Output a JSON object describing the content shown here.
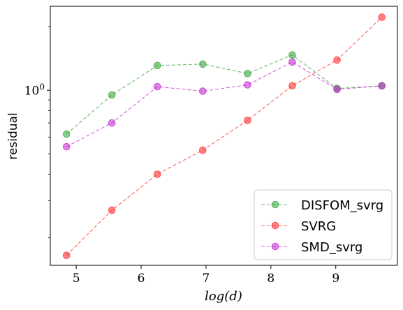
{
  "chart_data": {
    "type": "line",
    "title": "",
    "xlabel": "log(d)",
    "ylabel": "residual",
    "x": [
      4.85,
      5.55,
      6.25,
      6.95,
      7.64,
      8.33,
      9.02,
      9.71
    ],
    "xlim": [
      4.6,
      9.95
    ],
    "ylim": [
      0.148,
      2.5
    ],
    "yscale": "log",
    "xticks": [
      5,
      6,
      7,
      8,
      9
    ],
    "xtick_labels": [
      "5",
      "6",
      "7",
      "8",
      "9"
    ],
    "ytick_major": [
      1.0
    ],
    "ytick_major_labels": [
      "10^0"
    ],
    "ytick_minor": [
      0.2,
      0.3,
      0.4,
      0.5,
      0.6,
      0.7,
      0.8,
      0.9,
      2.0
    ],
    "grid": false,
    "legend_position": "bottom-right",
    "series": [
      {
        "name": "DISFOM_svrg",
        "color": "#2ca02c",
        "values": [
          0.62,
          0.95,
          1.31,
          1.33,
          1.2,
          1.47,
          1.02,
          1.05
        ]
      },
      {
        "name": "SVRG",
        "color": "#ff2020",
        "values": [
          0.165,
          0.27,
          0.4,
          0.52,
          0.72,
          1.05,
          1.39,
          2.22
        ]
      },
      {
        "name": "SMD_svrg",
        "color": "#c020d0",
        "values": [
          0.54,
          0.7,
          1.04,
          0.99,
          1.06,
          1.36,
          1.01,
          1.05
        ]
      }
    ]
  }
}
